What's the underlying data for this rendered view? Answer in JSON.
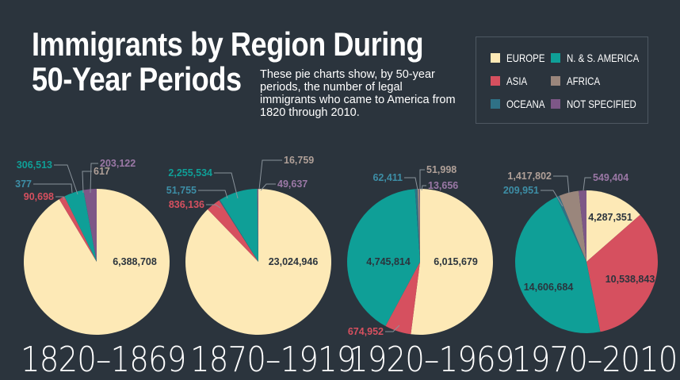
{
  "header": {
    "title_line1": "Immigrants by Region During",
    "title_line2": "50-Year Periods",
    "subtitle": "These pie charts show, by 50-year periods, the number of legal immigrants who came to America from 1820 through 2010."
  },
  "legend": {
    "items": [
      {
        "label": "EUROPE",
        "color": "#fde9b6"
      },
      {
        "label": "N. & S. AMERICA",
        "color": "#0f9f97"
      },
      {
        "label": "ASIA",
        "color": "#d6505f"
      },
      {
        "label": "AFRICA",
        "color": "#9a867c"
      },
      {
        "label": "OCEANA",
        "color": "#2f7186"
      },
      {
        "label": "NOT SPECIFIED",
        "color": "#7d5787"
      }
    ]
  },
  "chart_data": [
    {
      "type": "pie",
      "title": "1820–1869",
      "slices": [
        {
          "region": "EUROPE",
          "value": 6388708,
          "label": "6,388,708"
        },
        {
          "region": "ASIA",
          "value": 90698,
          "label": "90,698"
        },
        {
          "region": "OCEANA",
          "value": 377,
          "label": "377"
        },
        {
          "region": "N. & S. AMERICA",
          "value": 306513,
          "label": "306,513"
        },
        {
          "region": "AFRICA",
          "value": 617,
          "label": "617"
        },
        {
          "region": "NOT SPECIFIED",
          "value": 203122,
          "label": "203,122"
        }
      ]
    },
    {
      "type": "pie",
      "title": "1870–1919",
      "slices": [
        {
          "region": "EUROPE",
          "value": 23024946,
          "label": "23,024,946"
        },
        {
          "region": "ASIA",
          "value": 836136,
          "label": "836,136"
        },
        {
          "region": "OCEANA",
          "value": 51755,
          "label": "51,755"
        },
        {
          "region": "N. & S. AMERICA",
          "value": 2255534,
          "label": "2,255,534"
        },
        {
          "region": "AFRICA",
          "value": 16759,
          "label": "16,759"
        },
        {
          "region": "NOT SPECIFIED",
          "value": 49637,
          "label": "49,637"
        }
      ]
    },
    {
      "type": "pie",
      "title": "1920–1969",
      "slices": [
        {
          "region": "EUROPE",
          "value": 6015679,
          "label": "6,015,679"
        },
        {
          "region": "ASIA",
          "value": 674952,
          "label": "674,952"
        },
        {
          "region": "N. & S. AMERICA",
          "value": 4745814,
          "label": "4,745,814"
        },
        {
          "region": "OCEANA",
          "value": 62411,
          "label": "62,411"
        },
        {
          "region": "AFRICA",
          "value": 51998,
          "label": "51,998"
        },
        {
          "region": "NOT SPECIFIED",
          "value": 13656,
          "label": "13,656"
        }
      ]
    },
    {
      "type": "pie",
      "title": "1970–2010",
      "slices": [
        {
          "region": "EUROPE",
          "value": 4287351,
          "label": "4,287,351"
        },
        {
          "region": "ASIA",
          "value": 10538843,
          "label": "10,538,843"
        },
        {
          "region": "N. & S. AMERICA",
          "value": 14606684,
          "label": "14,606,684"
        },
        {
          "region": "OCEANA",
          "value": 209951,
          "label": "209,951"
        },
        {
          "region": "AFRICA",
          "value": 1417802,
          "label": "1,417,802"
        },
        {
          "region": "NOT SPECIFIED",
          "value": 549404,
          "label": "549,404"
        }
      ]
    }
  ]
}
